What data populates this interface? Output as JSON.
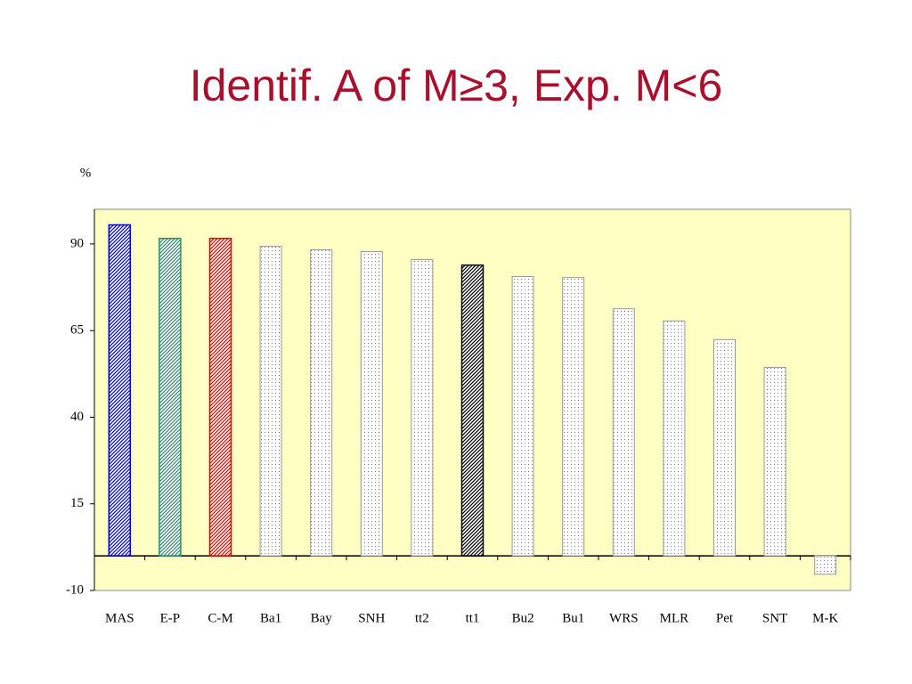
{
  "chart_data": {
    "type": "bar",
    "title": "Identif. A of M≥3, Exp. M<6",
    "y_label": "%",
    "categories": [
      "MAS",
      "E-P",
      "C-M",
      "Ba1",
      "Bay",
      "SNH",
      "tt2",
      "tt1",
      "Bu2",
      "Bu1",
      "WRS",
      "MLR",
      "Pet",
      "SNT",
      "M-K"
    ],
    "values": [
      95.5,
      91.6,
      91.6,
      89.3,
      88.3,
      87.8,
      85.5,
      83.9,
      80.6,
      80.3,
      71.3,
      67.8,
      62.4,
      54.4,
      -5.3
    ],
    "colors": [
      "#0000cc",
      "#2e8b6e",
      "#e00000",
      "#999999",
      "#999999",
      "#999999",
      "#999999",
      "#000000",
      "#999999",
      "#999999",
      "#999999",
      "#999999",
      "#999999",
      "#999999",
      "#999999"
    ],
    "hatched": [
      true,
      true,
      true,
      false,
      false,
      false,
      false,
      true,
      false,
      false,
      false,
      false,
      false,
      false,
      false
    ],
    "ylim": [
      -10,
      100
    ],
    "yticks": [
      -10,
      15,
      40,
      65,
      90
    ],
    "background": "#ffffc4"
  }
}
